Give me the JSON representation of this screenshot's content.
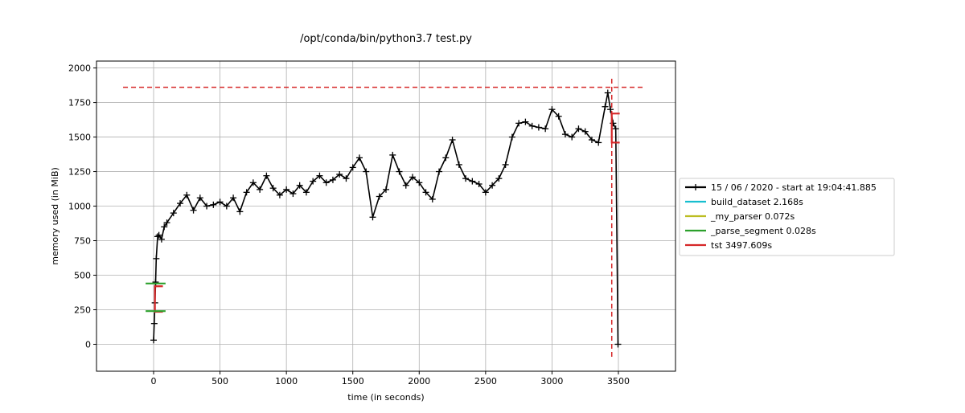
{
  "chart_data": {
    "type": "line",
    "title": "/opt/conda/bin/python3.7 test.py",
    "xlabel": "time (in seconds)",
    "ylabel": "memory used (in MiB)",
    "xlim": [
      -430,
      3930
    ],
    "ylim": [
      -195,
      2050
    ],
    "xticks": [
      0,
      500,
      1000,
      1500,
      2000,
      2500,
      3000,
      3500
    ],
    "yticks": [
      0,
      250,
      500,
      750,
      1000,
      1250,
      1500,
      1750,
      2000
    ],
    "grid": true,
    "legend_position": "right",
    "series": [
      {
        "name": "15 / 06 / 2020 - start at 19:04:41.885",
        "color": "#000000",
        "marker": "+",
        "x": [
          0,
          5,
          10,
          15,
          20,
          30,
          40,
          60,
          80,
          100,
          150,
          200,
          250,
          300,
          350,
          400,
          450,
          500,
          550,
          600,
          650,
          700,
          750,
          800,
          850,
          900,
          950,
          1000,
          1050,
          1100,
          1150,
          1200,
          1250,
          1300,
          1350,
          1400,
          1450,
          1500,
          1550,
          1600,
          1650,
          1700,
          1750,
          1800,
          1850,
          1900,
          1950,
          2000,
          2050,
          2100,
          2150,
          2200,
          2250,
          2300,
          2350,
          2400,
          2450,
          2500,
          2550,
          2600,
          2650,
          2700,
          2750,
          2800,
          2850,
          2900,
          2950,
          3000,
          3050,
          3100,
          3150,
          3200,
          3250,
          3300,
          3350,
          3400,
          3420,
          3440,
          3460,
          3480,
          3497
        ],
        "y": [
          30,
          150,
          300,
          450,
          620,
          780,
          790,
          760,
          850,
          880,
          950,
          1020,
          1080,
          970,
          1060,
          1000,
          1010,
          1030,
          1000,
          1060,
          960,
          1100,
          1170,
          1120,
          1220,
          1130,
          1080,
          1120,
          1090,
          1150,
          1100,
          1180,
          1220,
          1170,
          1190,
          1230,
          1200,
          1280,
          1350,
          1250,
          920,
          1070,
          1120,
          1370,
          1250,
          1150,
          1210,
          1170,
          1100,
          1050,
          1250,
          1350,
          1480,
          1300,
          1200,
          1180,
          1160,
          1100,
          1150,
          1200,
          1300,
          1500,
          1600,
          1610,
          1580,
          1570,
          1560,
          1700,
          1650,
          1520,
          1500,
          1560,
          1540,
          1480,
          1460,
          1720,
          1820,
          1700,
          1600,
          1560,
          0
        ]
      },
      {
        "name": "build_dataset 2.168s",
        "color": "#17becf",
        "x": [],
        "y": []
      },
      {
        "name": "_my_parser 0.072s",
        "color": "#bcbd22",
        "x": [],
        "y": []
      },
      {
        "name": "_parse_segment 0.028s",
        "color": "#2ca02c",
        "x": [],
        "y": []
      },
      {
        "name": "tst 3497.609s",
        "color": "#d62728",
        "x": [],
        "y": []
      }
    ],
    "annotations": {
      "hline_max": {
        "y": 1860,
        "x0": -230,
        "x1": 3690,
        "color": "#d62728",
        "style": "dashed"
      },
      "vline_max": {
        "x": 3450,
        "y0": -90,
        "y1": 1940,
        "color": "#d62728",
        "style": "dashed"
      },
      "function_brackets": [
        {
          "series": "tst 3497.609s",
          "x0": 10,
          "x1": 70,
          "y0": 235,
          "y1": 420,
          "color": "#d62728"
        },
        {
          "series": "tst 3497.609s",
          "x0": 3450,
          "x1": 3510,
          "y0": 1460,
          "y1": 1670,
          "color": "#d62728"
        },
        {
          "series": "_parse_segment 0.028s",
          "x0": -60,
          "x1": 90,
          "y0": 440,
          "y1": 440,
          "color": "#2ca02c"
        },
        {
          "series": "_parse_segment 0.028s",
          "x0": -60,
          "x1": 90,
          "y0": 240,
          "y1": 240,
          "color": "#2ca02c"
        }
      ]
    }
  }
}
